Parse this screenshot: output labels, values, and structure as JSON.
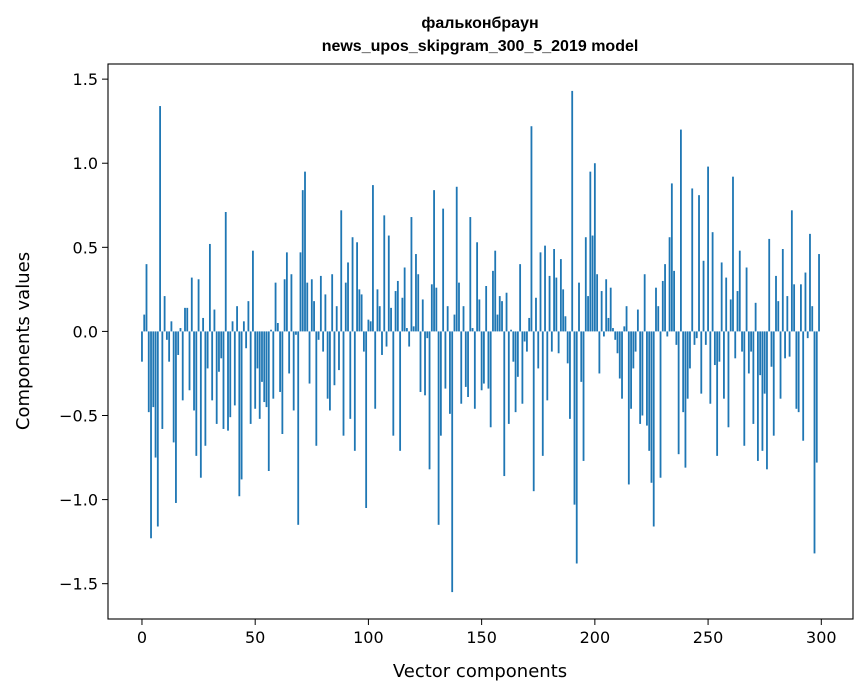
{
  "chart_data": {
    "type": "bar",
    "title": [
      "фальконбраун",
      "news_upos_skipgram_300_5_2019 model"
    ],
    "xlabel": "Vector components",
    "ylabel": "Components values",
    "xlim": [
      -15,
      314
    ],
    "ylim": [
      -1.71,
      1.59
    ],
    "xticks": [
      0,
      50,
      100,
      150,
      200,
      250,
      300
    ],
    "xtick_labels": [
      "0",
      "50",
      "100",
      "150",
      "200",
      "250",
      "300"
    ],
    "yticks": [
      -1.5,
      -1.0,
      -0.5,
      0.0,
      0.5,
      1.0,
      1.5
    ],
    "ytick_labels": [
      "−1.5",
      "−1.0",
      "−0.5",
      "0.0",
      "0.5",
      "1.0",
      "1.5"
    ],
    "bar_color": "#1f77b4",
    "grid": false,
    "x": [
      0,
      1,
      2,
      3,
      4,
      5,
      6,
      7,
      8,
      9,
      10,
      11,
      12,
      13,
      14,
      15,
      16,
      17,
      18,
      19,
      20,
      21,
      22,
      23,
      24,
      25,
      26,
      27,
      28,
      29,
      30,
      31,
      32,
      33,
      34,
      35,
      36,
      37,
      38,
      39,
      40,
      41,
      42,
      43,
      44,
      45,
      46,
      47,
      48,
      49,
      50,
      51,
      52,
      53,
      54,
      55,
      56,
      57,
      58,
      59,
      60,
      61,
      62,
      63,
      64,
      65,
      66,
      67,
      68,
      69,
      70,
      71,
      72,
      73,
      74,
      75,
      76,
      77,
      78,
      79,
      80,
      81,
      82,
      83,
      84,
      85,
      86,
      87,
      88,
      89,
      90,
      91,
      92,
      93,
      94,
      95,
      96,
      97,
      98,
      99,
      100,
      101,
      102,
      103,
      104,
      105,
      106,
      107,
      108,
      109,
      110,
      111,
      112,
      113,
      114,
      115,
      116,
      117,
      118,
      119,
      120,
      121,
      122,
      123,
      124,
      125,
      126,
      127,
      128,
      129,
      130,
      131,
      132,
      133,
      134,
      135,
      136,
      137,
      138,
      139,
      140,
      141,
      142,
      143,
      144,
      145,
      146,
      147,
      148,
      149,
      150,
      151,
      152,
      153,
      154,
      155,
      156,
      157,
      158,
      159,
      160,
      161,
      162,
      163,
      164,
      165,
      166,
      167,
      168,
      169,
      170,
      171,
      172,
      173,
      174,
      175,
      176,
      177,
      178,
      179,
      180,
      181,
      182,
      183,
      184,
      185,
      186,
      187,
      188,
      189,
      190,
      191,
      192,
      193,
      194,
      195,
      196,
      197,
      198,
      199,
      200,
      201,
      202,
      203,
      204,
      205,
      206,
      207,
      208,
      209,
      210,
      211,
      212,
      213,
      214,
      215,
      216,
      217,
      218,
      219,
      220,
      221,
      222,
      223,
      224,
      225,
      226,
      227,
      228,
      229,
      230,
      231,
      232,
      233,
      234,
      235,
      236,
      237,
      238,
      239,
      240,
      241,
      242,
      243,
      244,
      245,
      246,
      247,
      248,
      249,
      250,
      251,
      252,
      253,
      254,
      255,
      256,
      257,
      258,
      259,
      260,
      261,
      262,
      263,
      264,
      265,
      266,
      267,
      268,
      269,
      270,
      271,
      272,
      273,
      274,
      275,
      276,
      277,
      278,
      279,
      280,
      281,
      282,
      283,
      284,
      285,
      286,
      287,
      288,
      289,
      290,
      291,
      292,
      293,
      294,
      295,
      296,
      297,
      298,
      299
    ],
    "values": [
      -0.18,
      0.1,
      0.4,
      -0.48,
      -1.23,
      -0.45,
      -0.75,
      -1.16,
      1.34,
      -0.58,
      0.21,
      -0.05,
      -0.18,
      0.06,
      -0.66,
      -1.02,
      -0.14,
      0.02,
      -0.41,
      0.14,
      0.14,
      -0.35,
      0.32,
      -0.47,
      -0.74,
      0.31,
      -0.87,
      0.08,
      -0.68,
      -0.22,
      0.52,
      -0.41,
      0.13,
      -0.55,
      -0.24,
      -0.16,
      -0.58,
      0.71,
      -0.59,
      -0.51,
      0.06,
      -0.44,
      0.15,
      -0.98,
      -0.88,
      0.06,
      -0.1,
      0.18,
      -0.55,
      0.48,
      -0.46,
      -0.22,
      -0.52,
      -0.3,
      -0.42,
      -0.45,
      -0.83,
      0.01,
      -0.4,
      0.29,
      0.05,
      -0.36,
      -0.61,
      0.31,
      0.47,
      -0.25,
      0.34,
      -0.47,
      -0.02,
      -1.15,
      0.47,
      0.84,
      0.95,
      0.29,
      -0.31,
      0.31,
      0.18,
      -0.68,
      -0.05,
      0.33,
      -0.12,
      0.22,
      -0.4,
      -0.47,
      0.34,
      -0.32,
      0.15,
      -0.23,
      0.72,
      -0.62,
      0.29,
      0.41,
      -0.52,
      0.56,
      -0.71,
      0.53,
      0.25,
      0.22,
      -0.12,
      -1.05,
      0.07,
      0.06,
      0.87,
      -0.46,
      0.25,
      0.15,
      -0.14,
      0.69,
      -0.09,
      0.57,
      0.14,
      -0.62,
      0.24,
      0.3,
      -0.71,
      0.2,
      0.38,
      0.02,
      -0.09,
      0.68,
      0.03,
      0.46,
      0.34,
      -0.36,
      0.19,
      -0.38,
      -0.04,
      -0.82,
      0.28,
      0.84,
      0.26,
      -1.15,
      -0.62,
      0.73,
      -0.34,
      0.15,
      -0.49,
      -1.55,
      0.1,
      0.86,
      0.29,
      -0.43,
      0.15,
      -0.33,
      -0.39,
      0.68,
      0.02,
      -0.46,
      0.53,
      0.19,
      -0.35,
      -0.31,
      0.27,
      -0.34,
      -0.57,
      0.36,
      0.48,
      0.1,
      0.21,
      0.18,
      -0.86,
      0.23,
      -0.55,
      0.01,
      -0.18,
      -0.48,
      -0.27,
      0.4,
      -0.43,
      -0.06,
      -0.12,
      0.08,
      1.22,
      -0.95,
      0.2,
      -0.22,
      0.47,
      -0.74,
      0.51,
      -0.41,
      0.33,
      -0.12,
      0.49,
      0.32,
      -0.13,
      0.43,
      0.25,
      0.09,
      -0.19,
      -0.52,
      1.43,
      -1.03,
      -1.38,
      0.29,
      -0.3,
      -0.77,
      0.56,
      0.21,
      0.95,
      0.57,
      1.0,
      0.34,
      -0.25,
      0.24,
      -0.03,
      0.31,
      0.08,
      0.26,
      0.02,
      -0.05,
      -0.13,
      -0.28,
      -0.4,
      0.03,
      0.15,
      -0.91,
      -0.46,
      -0.22,
      -0.12,
      0.13,
      -0.55,
      -0.5,
      0.34,
      -0.56,
      -0.71,
      -0.9,
      -1.16,
      0.26,
      0.15,
      -0.87,
      0.3,
      0.4,
      -0.03,
      0.56,
      0.88,
      0.36,
      -0.08,
      -0.73,
      1.2,
      -0.48,
      -0.81,
      -0.4,
      -0.22,
      0.85,
      -0.08,
      -0.04,
      0.81,
      -0.37,
      0.42,
      -0.08,
      0.98,
      -0.43,
      0.59,
      -0.2,
      -0.74,
      -0.18,
      0.41,
      -0.4,
      0.32,
      -0.57,
      0.19,
      0.92,
      -0.16,
      0.24,
      0.48,
      -0.12,
      -0.68,
      0.38,
      -0.25,
      -0.12,
      -0.55,
      0.17,
      -0.77,
      -0.26,
      -0.71,
      -0.37,
      -0.82,
      0.55,
      -0.21,
      -0.62,
      0.33,
      0.18,
      -0.4,
      0.49,
      -0.16,
      0.21,
      -0.15,
      0.72,
      0.28,
      -0.46,
      -0.48,
      0.28,
      -0.65,
      0.35,
      -0.04,
      0.58,
      0.15,
      -1.32,
      -0.78,
      0.46
    ]
  }
}
